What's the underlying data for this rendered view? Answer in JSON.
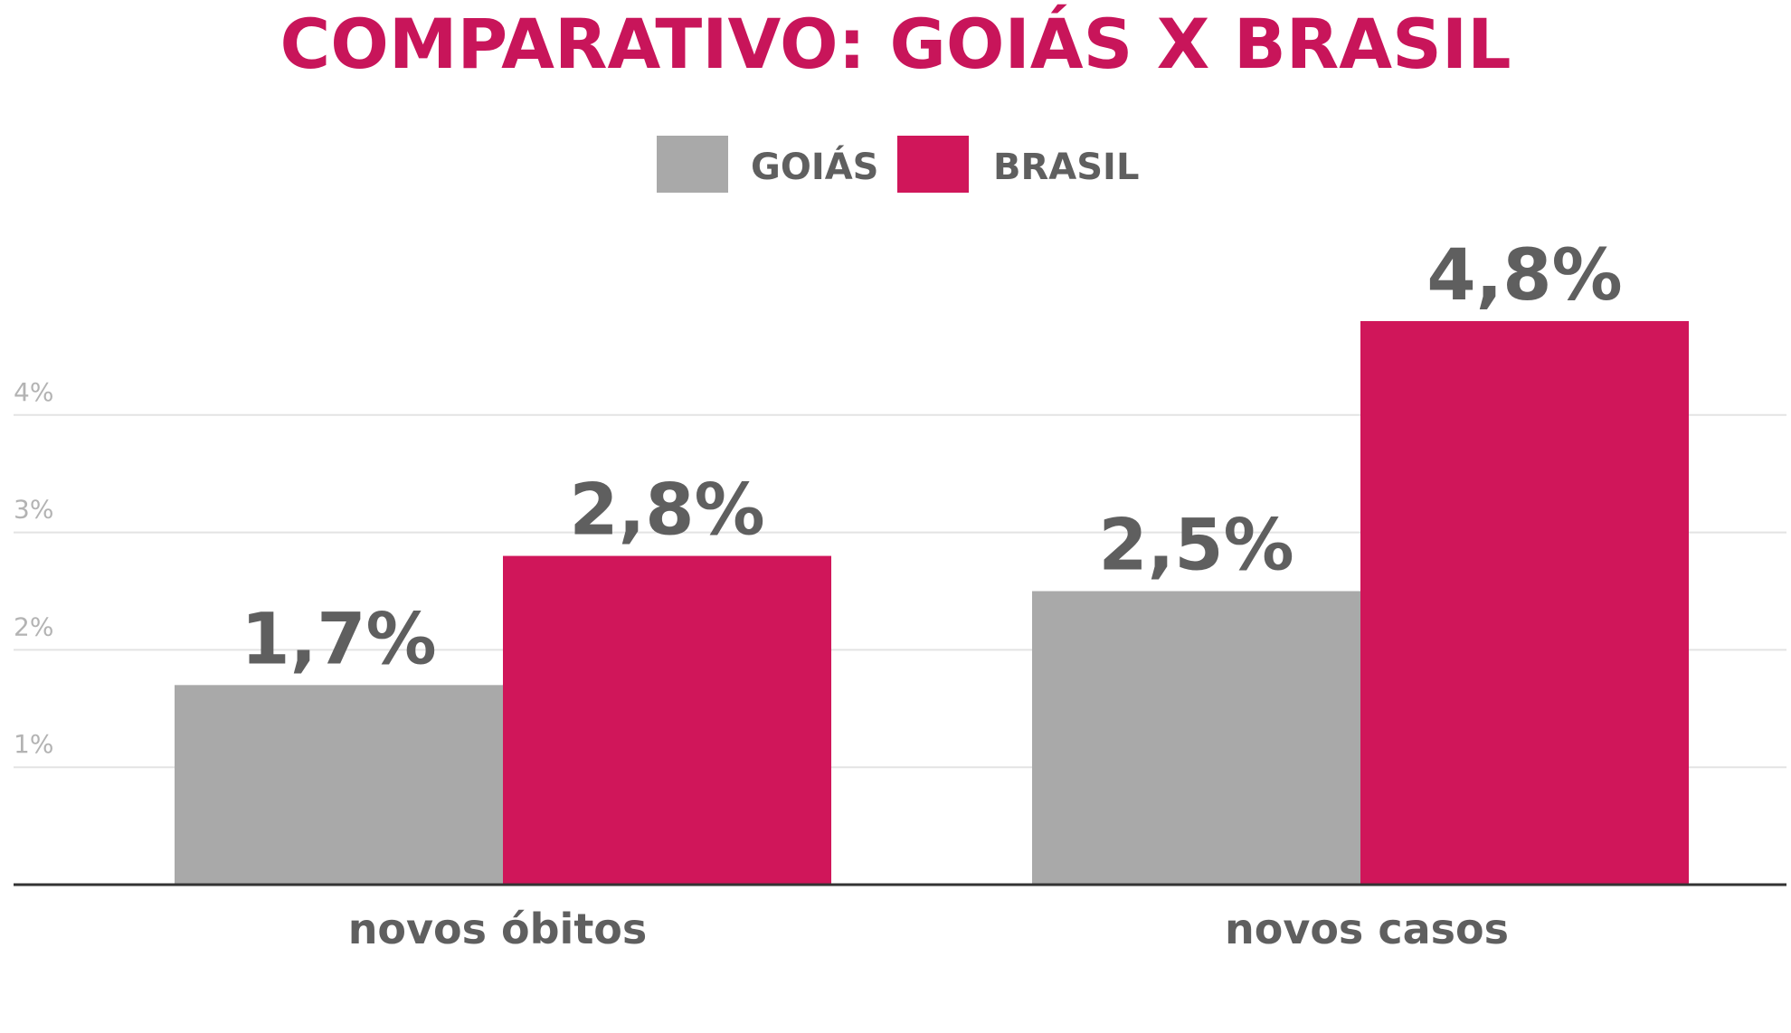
{
  "chart_data": {
    "type": "bar",
    "title": "COMPARATIVO: GOIÁS X BRASIL",
    "categories": [
      "novos óbitos",
      "novos casos"
    ],
    "series": [
      {
        "name": "GOIÁS",
        "color": "#a9a9a9",
        "values": [
          1.7,
          2.5
        ],
        "labels": [
          "1,7%",
          "2,5%"
        ]
      },
      {
        "name": "BRASIL",
        "color": "#d0165a",
        "values": [
          2.8,
          4.8
        ],
        "labels": [
          "2,8%",
          "4,8%"
        ]
      }
    ],
    "yticks": [
      {
        "value": 1,
        "label": "1%"
      },
      {
        "value": 2,
        "label": "2%"
      },
      {
        "value": 3,
        "label": "3%"
      },
      {
        "value": 4,
        "label": "4%"
      }
    ],
    "ylim": [
      0,
      4.8
    ],
    "grid": true,
    "legend_position": "top-center",
    "xlabel": "",
    "ylabel": ""
  }
}
